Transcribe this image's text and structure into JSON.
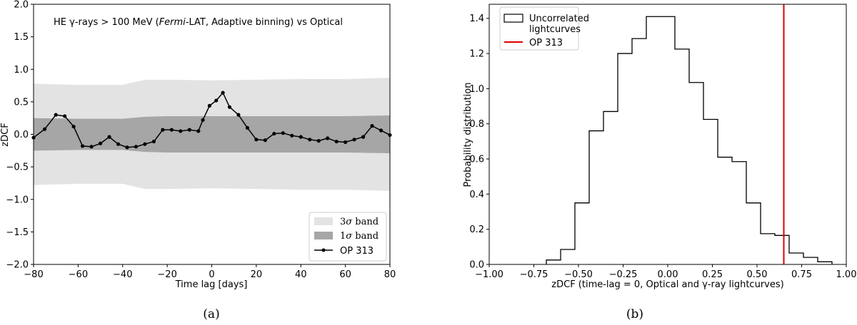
{
  "chart_data": [
    {
      "type": "line",
      "panel_caption": "(a)",
      "title_parts": [
        "HE γ-rays > 100 MeV (",
        "Fermi",
        "-LAT, Adaptive binning) vs Optical"
      ],
      "xlabel": "Time lag [days]",
      "ylabel": "zDCF",
      "xlim": [
        -80,
        80
      ],
      "ylim": [
        -2.0,
        2.0
      ],
      "xticks": [
        -80,
        -60,
        -40,
        -20,
        0,
        20,
        40,
        60,
        80
      ],
      "xtick_labels": [
        "−80",
        "−60",
        "−40",
        "−20",
        "0",
        "20",
        "40",
        "60",
        "80"
      ],
      "yticks": [
        -2.0,
        -1.5,
        -1.0,
        -0.5,
        0.0,
        0.5,
        1.0,
        1.5,
        2.0
      ],
      "ytick_labels": [
        "−2.0",
        "−1.5",
        "−1.0",
        "−0.5",
        "0.0",
        "0.5",
        "1.0",
        "1.5",
        "2.0"
      ],
      "bands": {
        "x": [
          -80,
          -60,
          -40,
          -30,
          -20,
          0,
          20,
          40,
          60,
          80
        ],
        "sigma3_upper": [
          0.78,
          0.76,
          0.76,
          0.84,
          0.84,
          0.83,
          0.84,
          0.85,
          0.85,
          0.87
        ],
        "sigma3_lower": [
          -0.78,
          -0.76,
          -0.76,
          -0.84,
          -0.84,
          -0.83,
          -0.84,
          -0.85,
          -0.85,
          -0.87
        ],
        "sigma1_upper": [
          0.25,
          0.24,
          0.24,
          0.27,
          0.28,
          0.28,
          0.28,
          0.28,
          0.28,
          0.29
        ],
        "sigma1_lower": [
          -0.25,
          -0.24,
          -0.24,
          -0.27,
          -0.28,
          -0.28,
          -0.28,
          -0.28,
          -0.28,
          -0.29
        ]
      },
      "series": [
        {
          "name": "OP 313",
          "x": [
            -80,
            -75,
            -70,
            -66,
            -62,
            -58,
            -54,
            -50,
            -46,
            -42,
            -38,
            -34,
            -30,
            -26,
            -22,
            -18,
            -14,
            -10,
            -6,
            -4,
            -1,
            2,
            5,
            8,
            12,
            16,
            20,
            24,
            28,
            32,
            36,
            40,
            44,
            48,
            52,
            56,
            60,
            64,
            68,
            72,
            76,
            80
          ],
          "y": [
            -0.05,
            0.08,
            0.3,
            0.28,
            0.12,
            -0.18,
            -0.19,
            -0.14,
            -0.04,
            -0.15,
            -0.2,
            -0.19,
            -0.15,
            -0.11,
            0.07,
            0.07,
            0.05,
            0.07,
            0.05,
            0.22,
            0.44,
            0.52,
            0.64,
            0.42,
            0.3,
            0.1,
            -0.08,
            -0.09,
            0.01,
            0.02,
            -0.02,
            -0.04,
            -0.08,
            -0.1,
            -0.06,
            -0.11,
            -0.12,
            -0.08,
            -0.04,
            0.13,
            0.06,
            -0.01
          ]
        }
      ],
      "legend": {
        "position": "lower right",
        "entries": [
          {
            "label_pre": "3",
            "symbol": "σ",
            "label_post": " band",
            "color": "#e3e3e3"
          },
          {
            "label_pre": "1",
            "symbol": "σ",
            "label_post": " band",
            "color": "#a6a6a6"
          },
          {
            "label": "OP 313",
            "color": "#000000"
          }
        ]
      }
    },
    {
      "type": "histogram",
      "panel_caption": "(b)",
      "xlabel": "zDCF (time-lag = 0, Optical and γ-ray lightcurves)",
      "ylabel": "Probability distribution",
      "xlim": [
        -1.0,
        1.0
      ],
      "ylim": [
        0.0,
        1.48
      ],
      "xticks": [
        -1.0,
        -0.75,
        -0.5,
        -0.25,
        0.0,
        0.25,
        0.5,
        0.75,
        1.0
      ],
      "xtick_labels": [
        "−1.00",
        "−0.75",
        "−0.50",
        "−0.25",
        "0.00",
        "0.25",
        "0.50",
        "0.75",
        "1.00"
      ],
      "yticks": [
        0.0,
        0.2,
        0.4,
        0.6,
        0.8,
        1.0,
        1.2,
        1.4
      ],
      "ytick_labels": [
        "0.0",
        "0.2",
        "0.4",
        "0.6",
        "0.8",
        "1.0",
        "1.2",
        "1.4"
      ],
      "bin_edges": [
        -0.68,
        -0.6,
        -0.52,
        -0.44,
        -0.36,
        -0.28,
        -0.2,
        -0.12,
        -0.04,
        0.04,
        0.12,
        0.2,
        0.28,
        0.36,
        0.44,
        0.52,
        0.6,
        0.68,
        0.76,
        0.84,
        0.92
      ],
      "bin_values": [
        0.025,
        0.085,
        0.35,
        0.76,
        0.87,
        1.2,
        1.285,
        1.41,
        1.41,
        1.225,
        1.035,
        0.825,
        0.61,
        0.585,
        0.35,
        0.175,
        0.165,
        0.065,
        0.04,
        0.015
      ],
      "series_name": "Uncorrelated lightcurves",
      "marker": {
        "name": "OP 313",
        "x": 0.65,
        "color": "#dd0000"
      },
      "legend": {
        "position": "upper left",
        "entries": [
          {
            "lines": [
              "Uncorrelated",
              "lightcurves"
            ],
            "color": "#000000"
          },
          {
            "label": "OP 313",
            "color": "#dd0000"
          }
        ]
      }
    }
  ]
}
